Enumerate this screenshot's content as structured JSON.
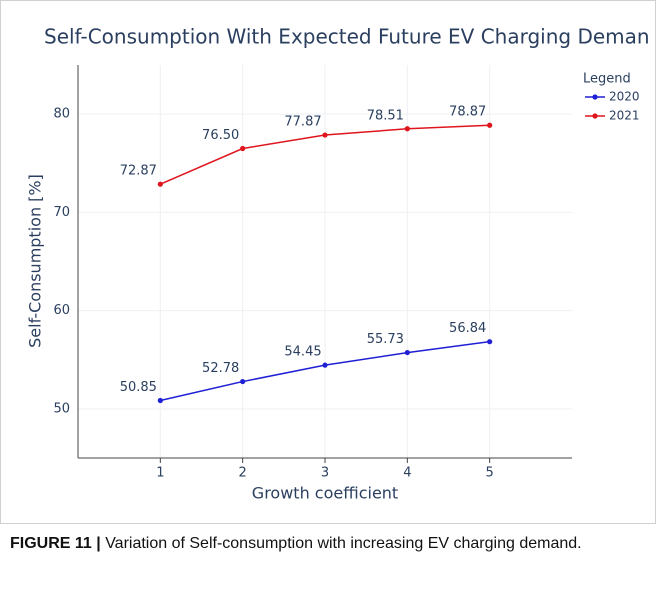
{
  "chart_data": {
    "type": "line",
    "title": "Self-Consumption With Expected Future EV Charging Deman",
    "x_label": "Growth coefficient",
    "y_label": "Self-Consumption [%]",
    "legend_title": "Legend",
    "x": [
      1,
      2,
      3,
      4,
      5
    ],
    "series": [
      {
        "name": "2020",
        "color": "#1f1fd6",
        "values": [
          50.85,
          52.78,
          54.45,
          55.73,
          56.84
        ],
        "value_labels": [
          "50.85",
          "52.78",
          "54.45",
          "55.73",
          "56.84"
        ]
      },
      {
        "name": "2021",
        "color": "#e0141c",
        "values": [
          72.87,
          76.5,
          77.87,
          78.51,
          78.87
        ],
        "value_labels": [
          "72.87",
          "76.50",
          "77.87",
          "78.51",
          "78.87"
        ]
      }
    ],
    "xlim": [
      0,
      6
    ],
    "xticks": [
      1,
      2,
      3,
      4,
      5
    ],
    "ylim": [
      45,
      85
    ],
    "yticks": [
      50,
      60,
      70,
      80
    ],
    "grid": true
  },
  "caption": {
    "label": "FIGURE 11 |",
    "text": "Variation of Self-consumption with increasing EV charging demand."
  }
}
